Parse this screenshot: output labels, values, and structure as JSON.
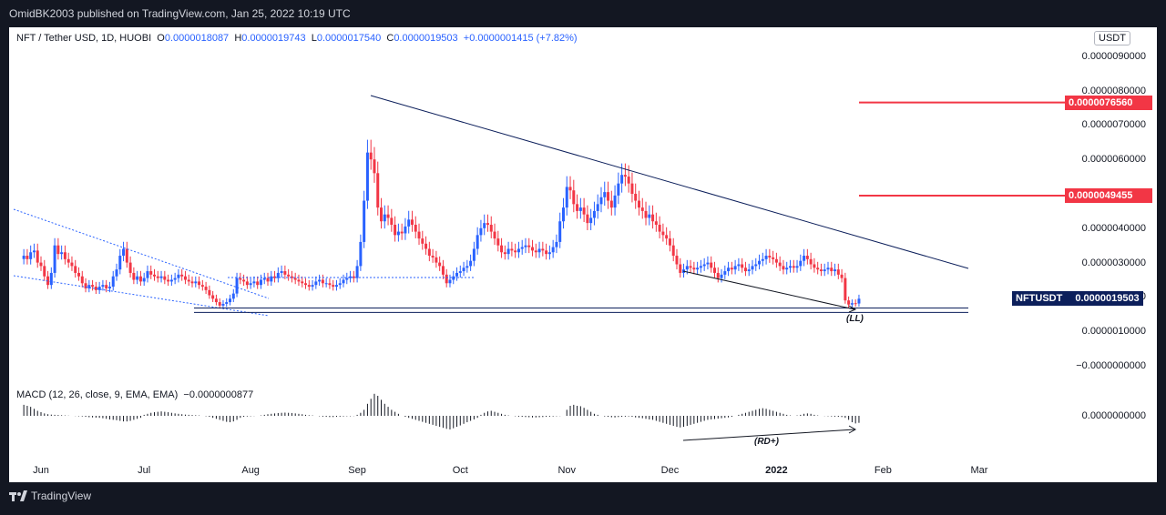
{
  "header": {
    "published_by": "OmidBK2003 published on TradingView.com, Jan 25, 2022 10:19 UTC"
  },
  "legend": {
    "symbol": "NFT / Tether USD, 1D, HUOBI",
    "o_label": "O",
    "o": "0.0000018087",
    "h_label": "H",
    "h": "0.0000019743",
    "l_label": "L",
    "l": "0.0000017540",
    "c_label": "C",
    "c": "0.0000019503",
    "change": "+0.0000001415 (+7.82%)"
  },
  "macd_legend": {
    "label": "MACD (12, 26, close, 9, EMA, EMA)",
    "value": "−0.0000000877"
  },
  "currency": "USDT",
  "price_labels": {
    "level_1": "0.0000076560",
    "level_2": "0.0000049455",
    "last_symbol": "NFTUSDT",
    "last_price": "0.0000019503"
  },
  "annotations": {
    "ll": "(LL)",
    "rd": "(RD+)"
  },
  "footer": {
    "brand": "TradingView",
    "logo_icon": "tradingview-logo-icon"
  },
  "colors": {
    "up": "#2962ff",
    "down": "#f23645",
    "line": "#0c1f5b",
    "accent": "#f23645"
  },
  "chart_data": {
    "type": "candlestick",
    "title": "NFT / Tether USD, 1D, HUOBI",
    "y_ticks": [
      "0.0000090000",
      "0.0000080000",
      "0.0000070000",
      "0.0000060000",
      "0.0000050000",
      "0.0000040000",
      "0.0000030000",
      "0.0000020000",
      "0.0000010000",
      "−0.0000000000"
    ],
    "y_tick_values": [
      9e-06,
      8e-06,
      7e-06,
      6e-06,
      5e-06,
      4e-06,
      3e-06,
      2e-06,
      1e-06,
      0
    ],
    "x_ticks": [
      {
        "label": "Jun",
        "date": "2021-06-01",
        "bold": false
      },
      {
        "label": "Jul",
        "date": "2021-07-01",
        "bold": false
      },
      {
        "label": "Aug",
        "date": "2021-08-01",
        "bold": false
      },
      {
        "label": "Sep",
        "date": "2021-09-01",
        "bold": false
      },
      {
        "label": "Oct",
        "date": "2021-10-01",
        "bold": false
      },
      {
        "label": "Nov",
        "date": "2021-11-01",
        "bold": false
      },
      {
        "label": "Dec",
        "date": "2021-12-01",
        "bold": false
      },
      {
        "label": "2022",
        "date": "2022-01-01",
        "bold": true
      },
      {
        "label": "Feb",
        "date": "2022-02-01",
        "bold": false
      },
      {
        "label": "Mar",
        "date": "2022-03-01",
        "bold": false
      }
    ],
    "macd_zero_label": "0.0000000000",
    "horizontal_levels": [
      7.656e-06,
      4.9455e-06
    ],
    "last_price": 1.9503e-06,
    "support_band": [
      1.55e-06,
      1.68e-06
    ],
    "series": {
      "dates": [
        "2021-05-27",
        "2021-05-28",
        "2021-05-29",
        "2021-05-30",
        "2021-05-31",
        "2021-06-01",
        "2021-06-02",
        "2021-06-03",
        "2021-06-04",
        "2021-06-05",
        "2021-06-06",
        "2021-06-07",
        "2021-06-08",
        "2021-06-09",
        "2021-06-10",
        "2021-06-11",
        "2021-06-12",
        "2021-06-13",
        "2021-06-14",
        "2021-06-15",
        "2021-06-16",
        "2021-06-17",
        "2021-06-18",
        "2021-06-19",
        "2021-06-20",
        "2021-06-21",
        "2021-06-22",
        "2021-06-23",
        "2021-06-24",
        "2021-06-25",
        "2021-06-26",
        "2021-06-27",
        "2021-06-28",
        "2021-06-29",
        "2021-06-30",
        "2021-07-01",
        "2021-07-02",
        "2021-07-03",
        "2021-07-04",
        "2021-07-05",
        "2021-07-06",
        "2021-07-07",
        "2021-07-08",
        "2021-07-09",
        "2021-07-10",
        "2021-07-11",
        "2021-07-12",
        "2021-07-13",
        "2021-07-14",
        "2021-07-15",
        "2021-07-16",
        "2021-07-17",
        "2021-07-18",
        "2021-07-19",
        "2021-07-20",
        "2021-07-21",
        "2021-07-22",
        "2021-07-23",
        "2021-07-24",
        "2021-07-25",
        "2021-07-26",
        "2021-07-27",
        "2021-07-28",
        "2021-07-29",
        "2021-07-30",
        "2021-07-31",
        "2021-08-01",
        "2021-08-02",
        "2021-08-03",
        "2021-08-04",
        "2021-08-05",
        "2021-08-06",
        "2021-08-07",
        "2021-08-08",
        "2021-08-09",
        "2021-08-10",
        "2021-08-11",
        "2021-08-12",
        "2021-08-13",
        "2021-08-14",
        "2021-08-15",
        "2021-08-16",
        "2021-08-17",
        "2021-08-18",
        "2021-08-19",
        "2021-08-20",
        "2021-08-21",
        "2021-08-22",
        "2021-08-23",
        "2021-08-24",
        "2021-08-25",
        "2021-08-26",
        "2021-08-27",
        "2021-08-28",
        "2021-08-29",
        "2021-08-30",
        "2021-08-31",
        "2021-09-01",
        "2021-09-02",
        "2021-09-03",
        "2021-09-04",
        "2021-09-05",
        "2021-09-06",
        "2021-09-07",
        "2021-09-08",
        "2021-09-09",
        "2021-09-10",
        "2021-09-11",
        "2021-09-12",
        "2021-09-13",
        "2021-09-14",
        "2021-09-15",
        "2021-09-16",
        "2021-09-17",
        "2021-09-18",
        "2021-09-19",
        "2021-09-20",
        "2021-09-21",
        "2021-09-22",
        "2021-09-23",
        "2021-09-24",
        "2021-09-25",
        "2021-09-26",
        "2021-09-27",
        "2021-09-28",
        "2021-09-29",
        "2021-09-30",
        "2021-10-01",
        "2021-10-02",
        "2021-10-03",
        "2021-10-04",
        "2021-10-05",
        "2021-10-06",
        "2021-10-07",
        "2021-10-08",
        "2021-10-09",
        "2021-10-10",
        "2021-10-11",
        "2021-10-12",
        "2021-10-13",
        "2021-10-14",
        "2021-10-15",
        "2021-10-16",
        "2021-10-17",
        "2021-10-18",
        "2021-10-19",
        "2021-10-20",
        "2021-10-21",
        "2021-10-22",
        "2021-10-23",
        "2021-10-24",
        "2021-10-25",
        "2021-10-26",
        "2021-10-27",
        "2021-10-28",
        "2021-10-29",
        "2021-10-30",
        "2021-10-31",
        "2021-11-01",
        "2021-11-02",
        "2021-11-03",
        "2021-11-04",
        "2021-11-05",
        "2021-11-06",
        "2021-11-07",
        "2021-11-08",
        "2021-11-09",
        "2021-11-10",
        "2021-11-11",
        "2021-11-12",
        "2021-11-13",
        "2021-11-14",
        "2021-11-15",
        "2021-11-16",
        "2021-11-17",
        "2021-11-18",
        "2021-11-19",
        "2021-11-20",
        "2021-11-21",
        "2021-11-22",
        "2021-11-23",
        "2021-11-24",
        "2021-11-25",
        "2021-11-26",
        "2021-11-27",
        "2021-11-28",
        "2021-11-29",
        "2021-11-30",
        "2021-12-01",
        "2021-12-02",
        "2021-12-03",
        "2021-12-04",
        "2021-12-05",
        "2021-12-06",
        "2021-12-07",
        "2021-12-08",
        "2021-12-09",
        "2021-12-10",
        "2021-12-11",
        "2021-12-12",
        "2021-12-13",
        "2021-12-14",
        "2021-12-15",
        "2021-12-16",
        "2021-12-17",
        "2021-12-18",
        "2021-12-19",
        "2021-12-20",
        "2021-12-21",
        "2021-12-22",
        "2021-12-23",
        "2021-12-24",
        "2021-12-25",
        "2021-12-26",
        "2021-12-27",
        "2021-12-28",
        "2021-12-29",
        "2021-12-30",
        "2021-12-31",
        "2022-01-01",
        "2022-01-02",
        "2022-01-03",
        "2022-01-04",
        "2022-01-05",
        "2022-01-06",
        "2022-01-07",
        "2022-01-08",
        "2022-01-09",
        "2022-01-10",
        "2022-01-11",
        "2022-01-12",
        "2022-01-13",
        "2022-01-14",
        "2022-01-15",
        "2022-01-16",
        "2022-01-17",
        "2022-01-18",
        "2022-01-19",
        "2022-01-20",
        "2022-01-21",
        "2022-01-22",
        "2022-01-23",
        "2022-01-24",
        "2022-01-25"
      ],
      "close": [
        3.2e-06,
        3.1e-06,
        3.3e-06,
        3.35e-06,
        3e-06,
        2.9e-06,
        2.6e-06,
        2.35e-06,
        2.7e-06,
        3.5e-06,
        3.25e-06,
        3.3e-06,
        3.1e-06,
        3e-06,
        2.9e-06,
        2.7e-06,
        2.6e-06,
        2.4e-06,
        2.25e-06,
        2.35e-06,
        2.3e-06,
        2.2e-06,
        2.3e-06,
        2.35e-06,
        2.25e-06,
        2.3e-06,
        2.6e-06,
        2.8e-06,
        3.2e-06,
        3.4e-06,
        3e-06,
        2.7e-06,
        2.5e-06,
        2.6e-06,
        2.45e-06,
        2.55e-06,
        2.75e-06,
        2.65e-06,
        2.6e-06,
        2.55e-06,
        2.6e-06,
        2.5e-06,
        2.45e-06,
        2.5e-06,
        2.55e-06,
        2.65e-06,
        2.6e-06,
        2.5e-06,
        2.45e-06,
        2.4e-06,
        2.45e-06,
        2.35e-06,
        2.3e-06,
        2.2e-06,
        2.05e-06,
        1.95e-06,
        1.85e-06,
        1.75e-06,
        1.8e-06,
        1.85e-06,
        1.95e-06,
        2.1e-06,
        2.55e-06,
        2.5e-06,
        2.45e-06,
        2.35e-06,
        2.4e-06,
        2.45e-06,
        2.35e-06,
        2.5e-06,
        2.55e-06,
        2.45e-06,
        2.6e-06,
        2.55e-06,
        2.7e-06,
        2.75e-06,
        2.65e-06,
        2.6e-06,
        2.55e-06,
        2.5e-06,
        2.45e-06,
        2.4e-06,
        2.35e-06,
        2.3e-06,
        2.35e-06,
        2.45e-06,
        2.5e-06,
        2.4e-06,
        2.4e-06,
        2.35e-06,
        2.3e-06,
        2.35e-06,
        2.4e-06,
        2.5e-06,
        2.55e-06,
        2.6e-06,
        2.55e-06,
        2.9e-06,
        3.6e-06,
        4.8e-06,
        6.2e-06,
        6e-06,
        5.6e-06,
        4.6e-06,
        4.2e-06,
        4.4e-06,
        4.3e-06,
        4.1e-06,
        3.8e-06,
        3.9e-06,
        3.85e-06,
        4.05e-06,
        4.25e-06,
        4.1e-06,
        3.9e-06,
        3.7e-06,
        3.55e-06,
        3.4e-06,
        3.2e-06,
        3.15e-06,
        3e-06,
        2.9e-06,
        2.65e-06,
        2.4e-06,
        2.5e-06,
        2.6e-06,
        2.7e-06,
        2.75e-06,
        2.85e-06,
        2.9e-06,
        3.05e-06,
        3.4e-06,
        3.8e-06,
        4e-06,
        4.15e-06,
        4.1e-06,
        3.9e-06,
        3.7e-06,
        3.5e-06,
        3.3e-06,
        3.25e-06,
        3.4e-06,
        3.35e-06,
        3.3e-06,
        3.4e-06,
        3.45e-06,
        3.5e-06,
        3.45e-06,
        3.35e-06,
        3.3e-06,
        3.4e-06,
        3.35e-06,
        3.25e-06,
        3.3e-06,
        3.45e-06,
        3.6e-06,
        4.2e-06,
        4.6e-06,
        5.2e-06,
        5.1e-06,
        4.7e-06,
        4.5e-06,
        4.6e-06,
        4.4e-06,
        4.15e-06,
        4.3e-06,
        4.5e-06,
        4.7e-06,
        4.9e-06,
        5.05e-06,
        4.8e-06,
        4.6e-06,
        4.95e-06,
        5.3e-06,
        5.55e-06,
        5.5e-06,
        5.3e-06,
        5e-06,
        4.8e-06,
        4.6e-06,
        4.5e-06,
        4.3e-06,
        4.4e-06,
        4.2e-06,
        4.1e-06,
        3.9e-06,
        3.8e-06,
        3.7e-06,
        3.5e-06,
        3.2e-06,
        2.95e-06,
        2.7e-06,
        2.8e-06,
        2.9e-06,
        2.85e-06,
        2.8e-06,
        2.85e-06,
        2.9e-06,
        2.95e-06,
        3e-06,
        2.85e-06,
        2.7e-06,
        2.55e-06,
        2.65e-06,
        2.75e-06,
        2.85e-06,
        2.8e-06,
        2.9e-06,
        2.95e-06,
        2.85e-06,
        2.75e-06,
        2.8e-06,
        2.9e-06,
        2.95e-06,
        3.05e-06,
        3.1e-06,
        3.2e-06,
        3.15e-06,
        3.1e-06,
        3e-06,
        2.9e-06,
        2.8e-06,
        2.85e-06,
        2.9e-06,
        2.85e-06,
        2.9e-06,
        3.05e-06,
        3.2e-06,
        3.1e-06,
        2.95e-06,
        2.85e-06,
        2.8e-06,
        2.75e-06,
        2.8e-06,
        2.85e-06,
        2.75e-06,
        2.8e-06,
        2.65e-06,
        2.55e-06,
        1.9e-06,
        1.78e-06,
        1.82e-06,
        1.81e-06,
        1.95e-06
      ],
      "macd_hist": [
        0.55,
        0.5,
        0.45,
        0.35,
        0.25,
        0.18,
        0.12,
        0.08,
        0.06,
        0.05,
        0.04,
        0.03,
        0.02,
        0.01,
        0.0,
        -0.01,
        -0.02,
        -0.03,
        -0.05,
        -0.07,
        -0.08,
        -0.09,
        -0.1,
        -0.12,
        -0.15,
        -0.18,
        -0.2,
        -0.22,
        -0.25,
        -0.28,
        -0.28,
        -0.25,
        -0.2,
        -0.15,
        -0.1,
        0.05,
        0.1,
        0.15,
        0.18,
        0.2,
        0.22,
        0.2,
        0.18,
        0.15,
        0.12,
        0.1,
        0.08,
        0.06,
        0.05,
        0.04,
        0.03,
        0.02,
        0.0,
        -0.02,
        -0.05,
        -0.1,
        -0.15,
        -0.2,
        -0.25,
        -0.3,
        -0.32,
        -0.28,
        -0.2,
        -0.1,
        -0.05,
        -0.03,
        -0.02,
        -0.01,
        0.0,
        0.02,
        0.05,
        0.08,
        0.1,
        0.12,
        0.14,
        0.15,
        0.16,
        0.15,
        0.14,
        0.12,
        0.1,
        0.08,
        0.05,
        0.03,
        0.02,
        0.0,
        -0.02,
        -0.04,
        -0.05,
        -0.06,
        -0.06,
        -0.05,
        -0.04,
        -0.03,
        -0.02,
        -0.02,
        -0.01,
        0.05,
        0.15,
        0.3,
        0.6,
        0.85,
        1.1,
        1.0,
        0.8,
        0.6,
        0.45,
        0.3,
        0.2,
        0.1,
        0.0,
        -0.05,
        -0.1,
        -0.15,
        -0.2,
        -0.25,
        -0.3,
        -0.35,
        -0.4,
        -0.45,
        -0.5,
        -0.55,
        -0.6,
        -0.65,
        -0.68,
        -0.62,
        -0.55,
        -0.48,
        -0.4,
        -0.32,
        -0.25,
        -0.18,
        -0.1,
        0.05,
        0.15,
        0.22,
        0.25,
        0.2,
        0.15,
        0.1,
        0.05,
        0.02,
        0.0,
        -0.02,
        -0.04,
        -0.05,
        -0.06,
        -0.07,
        -0.08,
        -0.08,
        -0.07,
        -0.06,
        -0.05,
        -0.04,
        -0.03,
        -0.02,
        -0.01,
        0.0,
        0.3,
        0.5,
        0.55,
        0.5,
        0.48,
        0.4,
        0.3,
        0.2,
        0.1,
        0.05,
        0.0,
        -0.03,
        -0.05,
        -0.07,
        -0.08,
        -0.06,
        -0.05,
        -0.04,
        -0.03,
        -0.05,
        -0.08,
        -0.1,
        -0.12,
        -0.15,
        -0.18,
        -0.2,
        -0.25,
        -0.3,
        -0.35,
        -0.4,
        -0.45,
        -0.5,
        -0.55,
        -0.58,
        -0.55,
        -0.5,
        -0.45,
        -0.4,
        -0.35,
        -0.3,
        -0.25,
        -0.2,
        -0.18,
        -0.16,
        -0.14,
        -0.12,
        -0.1,
        -0.08,
        -0.05,
        0.0,
        0.05,
        0.1,
        0.15,
        0.2,
        0.25,
        0.3,
        0.35,
        0.38,
        0.35,
        0.3,
        0.25,
        0.2,
        0.15,
        0.1,
        0.05,
        0.02,
        0.0,
        0.02,
        0.05,
        0.1,
        0.12,
        0.1,
        0.05,
        0.02,
        0.0,
        -0.01,
        -0.02,
        -0.03,
        -0.04,
        -0.05,
        -0.06,
        -0.1,
        -0.2,
        -0.32,
        -0.38,
        -0.35
      ]
    }
  }
}
